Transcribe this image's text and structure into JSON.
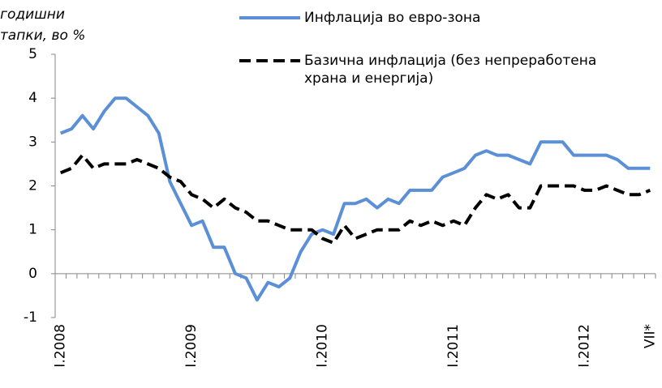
{
  "chart_data": {
    "type": "line",
    "y_label": [
      "годишни",
      "стапки, во %"
    ],
    "categories": [
      "I.2008",
      null,
      null,
      null,
      null,
      null,
      null,
      null,
      null,
      null,
      null,
      null,
      "I.2009",
      null,
      null,
      null,
      null,
      null,
      null,
      null,
      null,
      null,
      null,
      null,
      "I.2010",
      null,
      null,
      null,
      null,
      null,
      null,
      null,
      null,
      null,
      null,
      null,
      "I.2011",
      null,
      null,
      null,
      null,
      null,
      null,
      null,
      null,
      null,
      null,
      null,
      "I.2012",
      null,
      null,
      null,
      null,
      null,
      "VII*"
    ],
    "series": [
      {
        "name": "Инфлација во евро-зона",
        "color": "#5b8fd6",
        "dash": false,
        "values": [
          3.2,
          3.3,
          3.6,
          3.3,
          3.7,
          4.0,
          4.0,
          3.8,
          3.6,
          3.2,
          2.1,
          1.6,
          1.1,
          1.2,
          0.6,
          0.6,
          0.0,
          -0.1,
          -0.6,
          -0.2,
          -0.3,
          -0.1,
          0.5,
          0.9,
          1.0,
          0.9,
          1.6,
          1.6,
          1.7,
          1.5,
          1.7,
          1.6,
          1.9,
          1.9,
          1.9,
          2.2,
          2.3,
          2.4,
          2.7,
          2.8,
          2.7,
          2.7,
          2.6,
          2.5,
          3.0,
          3.0,
          3.0,
          2.7,
          2.7,
          2.7,
          2.7,
          2.6,
          2.4,
          2.4,
          2.4
        ]
      },
      {
        "name": "Базична инфлација (без непреработена храна и енергија)",
        "color": "#000000",
        "dash": true,
        "values": [
          2.3,
          2.4,
          2.7,
          2.4,
          2.5,
          2.5,
          2.5,
          2.6,
          2.5,
          2.4,
          2.2,
          2.1,
          1.8,
          1.7,
          1.5,
          1.7,
          1.5,
          1.4,
          1.2,
          1.2,
          1.1,
          1.0,
          1.0,
          1.0,
          0.8,
          0.7,
          1.1,
          0.8,
          0.9,
          1.0,
          1.0,
          1.0,
          1.2,
          1.1,
          1.2,
          1.1,
          1.2,
          1.1,
          1.5,
          1.8,
          1.7,
          1.8,
          1.5,
          1.5,
          2.0,
          2.0,
          2.0,
          2.0,
          1.9,
          1.9,
          2.0,
          1.9,
          1.8,
          1.8,
          1.9
        ]
      }
    ],
    "ylim": [
      -1,
      5
    ],
    "yticks": [
      -1,
      0,
      1,
      2,
      3,
      4,
      5
    ],
    "grid": false
  }
}
